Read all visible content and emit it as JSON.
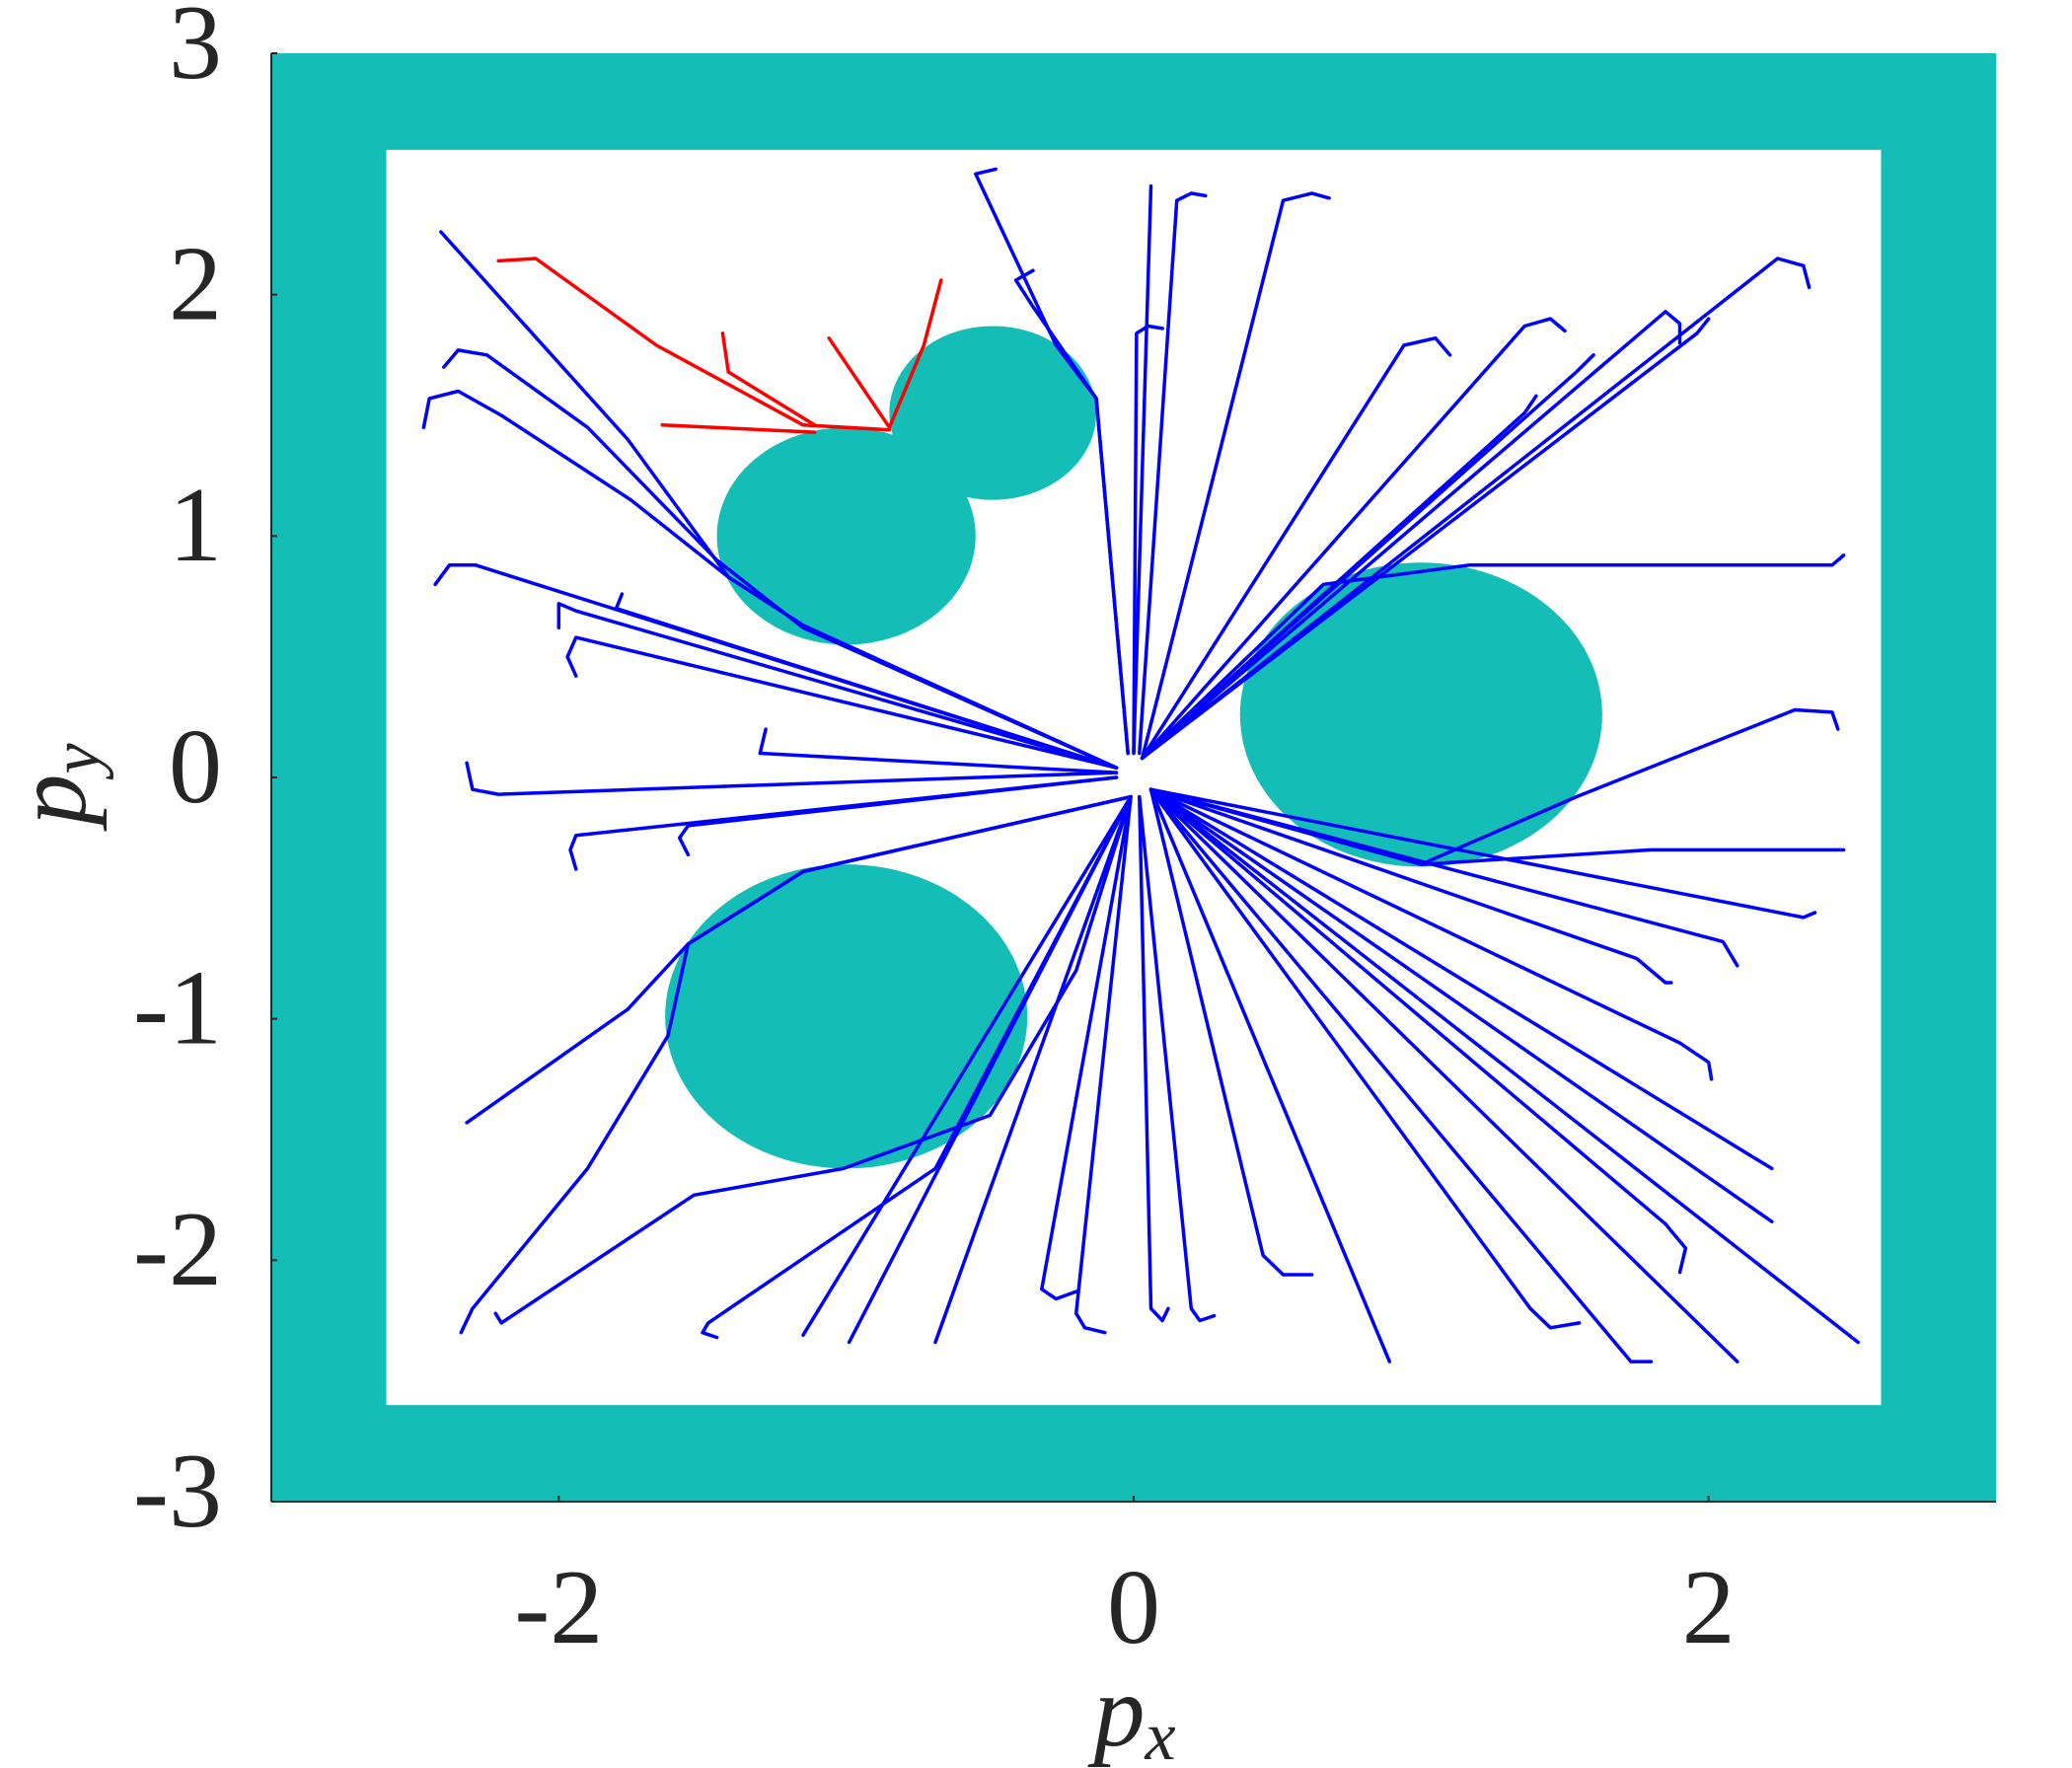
{
  "chart_data": {
    "type": "trajectories",
    "xlabel": {
      "text": "p",
      "subscript": "x"
    },
    "ylabel": {
      "text": "p",
      "subscript": "y"
    },
    "xlim": [
      -3,
      3
    ],
    "ylim": [
      -3,
      3
    ],
    "xticks": [
      -2,
      0,
      2
    ],
    "yticks": [
      -3,
      -2,
      -1,
      0,
      1,
      2,
      3
    ],
    "grid": false,
    "obstacle_color": "#14bdb6",
    "arena": {
      "x": [
        -2.6,
        2.6
      ],
      "y": [
        -2.6,
        2.6
      ]
    },
    "obstacles": [
      {
        "x": 1.0,
        "y": 0.26,
        "r": 0.63
      },
      {
        "x": -1.0,
        "y": -0.99,
        "r": 0.63
      },
      {
        "x": -1.0,
        "y": 1.0,
        "r": 0.45
      },
      {
        "x": -0.49,
        "y": 1.51,
        "r": 0.36
      }
    ],
    "trajectories": [
      {
        "color": "#0000ff",
        "x": [
          -0.06,
          -1.15,
          -1.41,
          -1.76,
          -2.41
        ],
        "y": [
          0.04,
          0.63,
          0.83,
          1.4,
          2.26
        ]
      },
      {
        "color": "#0000ff",
        "x": [
          -0.06,
          -1.15,
          -1.41,
          -1.75,
          -2.2,
          -2.35,
          -2.45,
          -2.47
        ],
        "y": [
          0.04,
          0.63,
          0.83,
          1.15,
          1.5,
          1.6,
          1.57,
          1.45
        ]
      },
      {
        "color": "#0000ff",
        "x": [
          -0.06,
          -1.15,
          -1.45,
          -1.9,
          -2.25,
          -2.35,
          -2.4
        ],
        "y": [
          0.04,
          0.62,
          0.9,
          1.45,
          1.75,
          1.77,
          1.7
        ]
      },
      {
        "color": "#0000ff",
        "x": [
          -0.06,
          -2.29,
          -2.38,
          -2.43
        ],
        "y": [
          0.04,
          0.88,
          0.88,
          0.8
        ]
      },
      {
        "color": "#0000ff",
        "x": [
          -0.06,
          -1.94,
          -2.0,
          -2.0
        ],
        "y": [
          0.04,
          0.69,
          0.72,
          0.62
        ]
      },
      {
        "color": "#0000ff",
        "x": [
          -0.06,
          -1.8,
          -1.78
        ],
        "y": [
          0.04,
          0.7,
          0.76
        ]
      },
      {
        "color": "#0000ff",
        "x": [
          -0.06,
          -1.94,
          -1.97,
          -1.94
        ],
        "y": [
          0.04,
          0.58,
          0.5,
          0.42
        ]
      },
      {
        "color": "#0000ff",
        "x": [
          -0.06,
          -2.21,
          -2.3,
          -2.32
        ],
        "y": [
          0.02,
          -0.07,
          -0.05,
          0.06
        ]
      },
      {
        "color": "#0000ff",
        "x": [
          -0.06,
          -1.94,
          -1.96,
          -1.94
        ],
        "y": [
          0.0,
          -0.24,
          -0.3,
          -0.38
        ]
      },
      {
        "color": "#0000ff",
        "x": [
          -0.06,
          -1.55,
          -1.58,
          -1.55
        ],
        "y": [
          0.0,
          -0.2,
          -0.25,
          -0.32
        ]
      },
      {
        "color": "#0000ff",
        "x": [
          -0.06,
          -1.3,
          -1.28
        ],
        "y": [
          0.02,
          0.1,
          0.2
        ]
      },
      {
        "color": "#0000ff",
        "x": [
          -0.01,
          -1.15,
          -1.55,
          -1.76,
          -2.32
        ],
        "y": [
          -0.08,
          -0.39,
          -0.69,
          -0.96,
          -1.43
        ]
      },
      {
        "color": "#0000ff",
        "x": [
          -0.01,
          -1.15,
          -1.55,
          -1.62,
          -1.9,
          -2.3,
          -2.34
        ],
        "y": [
          -0.08,
          -0.39,
          -0.69,
          -1.07,
          -1.62,
          -2.2,
          -2.3
        ]
      },
      {
        "color": "#0000ff",
        "x": [
          -0.01,
          -0.2,
          -0.5,
          -1.01,
          -1.53,
          -2.2,
          -2.22
        ],
        "y": [
          -0.08,
          -0.8,
          -1.4,
          -1.62,
          -1.73,
          -2.26,
          -2.22
        ]
      },
      {
        "color": "#0000ff",
        "x": [
          -0.01,
          -0.69,
          -1.48,
          -1.5,
          -1.45
        ],
        "y": [
          -0.08,
          -1.62,
          -2.26,
          -2.3,
          -2.32
        ]
      },
      {
        "color": "#0000ff",
        "x": [
          -0.01,
          -1.15
        ],
        "y": [
          -0.08,
          -2.31
        ]
      },
      {
        "color": "#0000ff",
        "x": [
          -0.01,
          -0.99
        ],
        "y": [
          -0.08,
          -2.34
        ]
      },
      {
        "color": "#0000ff",
        "x": [
          -0.01,
          -0.69
        ],
        "y": [
          -0.08,
          -2.34
        ]
      },
      {
        "color": "#0000ff",
        "x": [
          -0.01,
          -0.32,
          -0.27,
          -0.2
        ],
        "y": [
          -0.08,
          -2.12,
          -2.16,
          -2.13
        ]
      },
      {
        "color": "#0000ff",
        "x": [
          -0.01,
          -0.2,
          -0.17,
          -0.1
        ],
        "y": [
          -0.08,
          -2.22,
          -2.28,
          -2.3
        ]
      },
      {
        "color": "#0000ff",
        "x": [
          0.02,
          0.06,
          0.1,
          0.12
        ],
        "y": [
          -0.08,
          -2.2,
          -2.25,
          -2.2
        ]
      },
      {
        "color": "#0000ff",
        "x": [
          0.02,
          0.2,
          0.23,
          0.28
        ],
        "y": [
          -0.08,
          -2.2,
          -2.25,
          -2.23
        ]
      },
      {
        "color": "#0000ff",
        "x": [
          0.06,
          0.45,
          0.52,
          0.62
        ],
        "y": [
          -0.05,
          -1.98,
          -2.06,
          -2.06
        ]
      },
      {
        "color": "#0000ff",
        "x": [
          0.06,
          0.89
        ],
        "y": [
          -0.05,
          -2.42
        ]
      },
      {
        "color": "#0000ff",
        "x": [
          0.06,
          1.38,
          1.45,
          1.55
        ],
        "y": [
          -0.05,
          -2.2,
          -2.28,
          -2.26
        ]
      },
      {
        "color": "#0000ff",
        "x": [
          0.06,
          1.73,
          1.8
        ],
        "y": [
          -0.05,
          -2.42,
          -2.42
        ]
      },
      {
        "color": "#0000ff",
        "x": [
          0.06,
          2.1
        ],
        "y": [
          -0.05,
          -2.42
        ]
      },
      {
        "color": "#0000ff",
        "x": [
          0.06,
          2.52
        ],
        "y": [
          -0.05,
          -2.34
        ]
      },
      {
        "color": "#0000ff",
        "x": [
          0.06,
          2.22
        ],
        "y": [
          -0.05,
          -1.84
        ]
      },
      {
        "color": "#0000ff",
        "x": [
          0.06,
          1.85,
          1.92,
          1.9
        ],
        "y": [
          -0.05,
          -1.85,
          -1.95,
          -2.05
        ]
      },
      {
        "color": "#0000ff",
        "x": [
          0.06,
          2.22
        ],
        "y": [
          -0.05,
          -1.62
        ]
      },
      {
        "color": "#0000ff",
        "x": [
          0.06,
          1.9,
          2.0,
          2.01
        ],
        "y": [
          -0.05,
          -1.1,
          -1.18,
          -1.25
        ]
      },
      {
        "color": "#0000ff",
        "x": [
          0.06,
          2.05,
          2.1
        ],
        "y": [
          -0.05,
          -0.68,
          -0.78
        ]
      },
      {
        "color": "#0000ff",
        "x": [
          0.06,
          1.75,
          1.85,
          1.87
        ],
        "y": [
          -0.05,
          -0.75,
          -0.85,
          -0.85
        ]
      },
      {
        "color": "#0000ff",
        "x": [
          0.06,
          2.33,
          2.37
        ],
        "y": [
          -0.05,
          -0.58,
          -0.56
        ]
      },
      {
        "color": "#0000ff",
        "x": [
          0.06,
          1.0,
          1.8,
          2.47
        ],
        "y": [
          -0.05,
          -0.36,
          -0.3,
          -0.3
        ]
      },
      {
        "color": "#0000ff",
        "x": [
          0.06,
          1.0,
          1.54,
          2.3,
          2.43,
          2.45
        ],
        "y": [
          -0.05,
          -0.36,
          -0.08,
          0.28,
          0.27,
          0.2
        ]
      },
      {
        "color": "#0000ff",
        "x": [
          0.03,
          0.66,
          1.17,
          2.43,
          2.47
        ],
        "y": [
          0.08,
          0.8,
          0.88,
          0.88,
          0.92
        ]
      },
      {
        "color": "#0000ff",
        "x": [
          0.03,
          2.24,
          2.33,
          2.35
        ],
        "y": [
          0.08,
          2.15,
          2.12,
          2.03
        ]
      },
      {
        "color": "#0000ff",
        "x": [
          0.03,
          1.85,
          1.9,
          1.9
        ],
        "y": [
          0.08,
          1.93,
          1.88,
          1.8
        ]
      },
      {
        "color": "#0000ff",
        "x": [
          0.03,
          1.36,
          1.45,
          1.5
        ],
        "y": [
          0.08,
          1.87,
          1.9,
          1.85
        ]
      },
      {
        "color": "#0000ff",
        "x": [
          0.03,
          0.94,
          1.05,
          1.1
        ],
        "y": [
          0.08,
          1.79,
          1.82,
          1.75
        ]
      },
      {
        "color": "#0000ff",
        "x": [
          0.03,
          0.52,
          0.62,
          0.68
        ],
        "y": [
          0.08,
          2.39,
          2.42,
          2.4
        ]
      },
      {
        "color": "#0000ff",
        "x": [
          0.02,
          0.15,
          0.2,
          0.25
        ],
        "y": [
          0.1,
          2.39,
          2.42,
          2.41
        ]
      },
      {
        "color": "#0000ff",
        "x": [
          0.0,
          0.06
        ],
        "y": [
          0.1,
          2.45
        ]
      },
      {
        "color": "#0000ff",
        "x": [
          0.0,
          0.01,
          0.05,
          0.1
        ],
        "y": [
          0.1,
          1.84,
          1.87,
          1.86
        ]
      },
      {
        "color": "#0000ff",
        "x": [
          -0.02,
          -0.13,
          -0.27,
          -0.55,
          -0.48
        ],
        "y": [
          0.1,
          1.57,
          1.79,
          2.5,
          2.52
        ]
      },
      {
        "color": "#0000ff",
        "x": [
          -0.02,
          -0.13,
          -0.35,
          -0.41,
          -0.35
        ],
        "y": [
          0.1,
          1.57,
          1.95,
          2.06,
          2.1
        ]
      },
      {
        "color": "#0000ff",
        "x": [
          0.03,
          1.36,
          1.4
        ],
        "y": [
          0.08,
          1.51,
          1.58
        ]
      },
      {
        "color": "#0000ff",
        "x": [
          0.03,
          1.54,
          1.6
        ],
        "y": [
          0.08,
          1.68,
          1.75
        ]
      },
      {
        "color": "#0000ff",
        "x": [
          0.03,
          1.96,
          2.0
        ],
        "y": [
          0.08,
          1.84,
          1.9
        ]
      },
      {
        "color": "#ff0000",
        "x": [
          -2.21,
          -2.08,
          -1.66,
          -1.15,
          -0.85
        ],
        "y": [
          2.14,
          2.15,
          1.79,
          1.46,
          1.44
        ]
      },
      {
        "color": "#ff0000",
        "x": [
          -1.43,
          -1.41,
          -1.11
        ],
        "y": [
          1.84,
          1.68,
          1.46
        ]
      },
      {
        "color": "#ff0000",
        "x": [
          -1.64,
          -1.11
        ],
        "y": [
          1.46,
          1.43
        ]
      },
      {
        "color": "#ff0000",
        "x": [
          -1.06,
          -0.85,
          -0.73,
          -0.67
        ],
        "y": [
          1.82,
          1.45,
          1.79,
          2.06
        ]
      }
    ]
  }
}
